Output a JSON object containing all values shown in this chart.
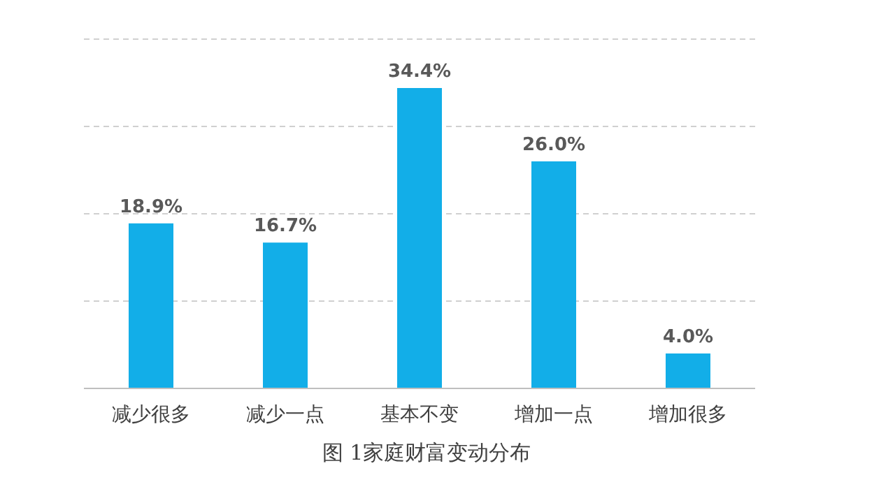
{
  "chart_data": {
    "type": "bar",
    "title": "图 1家庭财富变动分布",
    "categories": [
      "减少很多",
      "减少一点",
      "基本不变",
      "增加一点",
      "增加很多"
    ],
    "values": [
      18.9,
      16.7,
      34.4,
      26.0,
      4.0
    ],
    "value_labels": [
      "18.9%",
      "16.7%",
      "34.4%",
      "26.0%",
      "4.0%"
    ],
    "color": "#12aee8",
    "ylim": [
      0,
      40
    ],
    "yticks": [
      {
        "value": 0,
        "label": null
      },
      {
        "value": 10,
        "label": null
      },
      {
        "value": 20,
        "label": null
      },
      {
        "value": 30,
        "label": null
      },
      {
        "value": 40,
        "label": null
      }
    ],
    "grid": "y",
    "tick_labels": "x"
  }
}
